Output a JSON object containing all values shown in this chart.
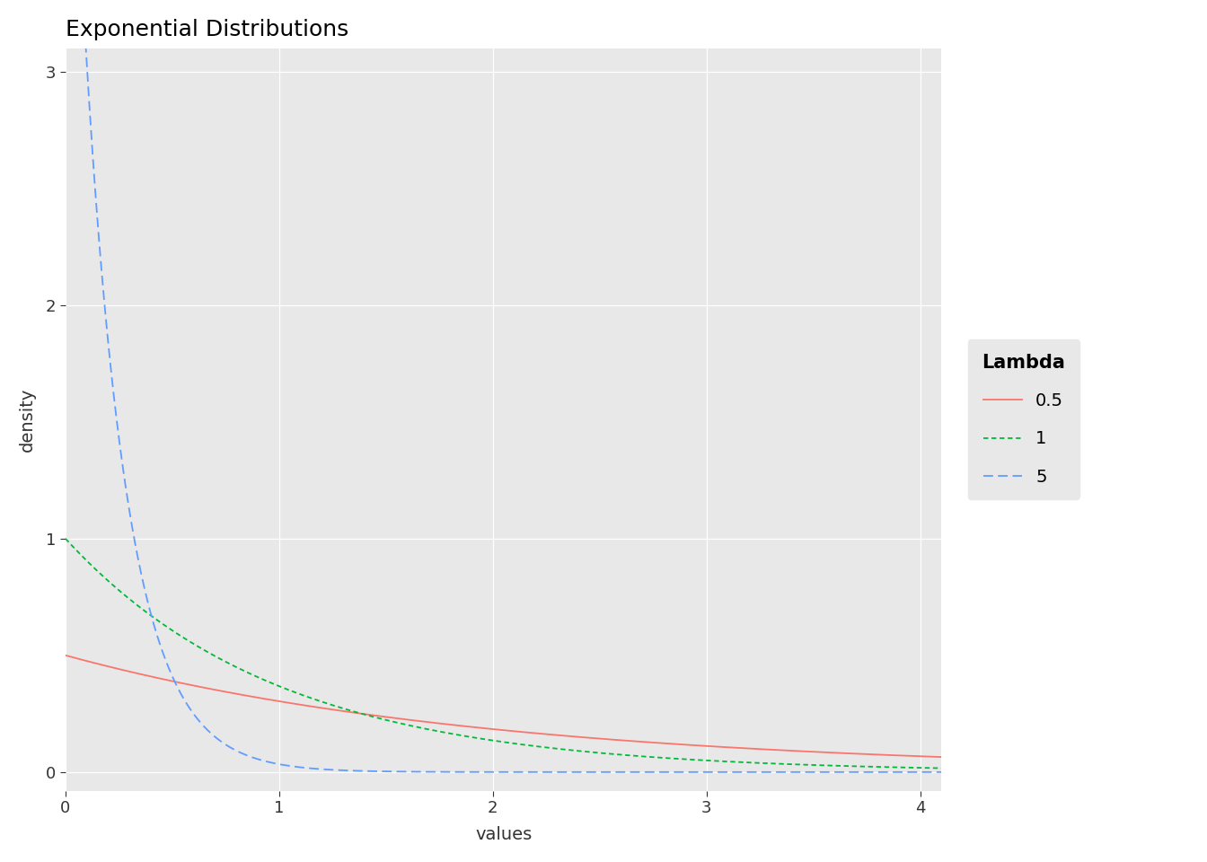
{
  "title": "Exponential Distributions",
  "xlabel": "values",
  "ylabel": "density",
  "legend_title": "Lambda",
  "lambdas": [
    0.5,
    1,
    5
  ],
  "lambda_labels": [
    "0.5",
    "1",
    "5"
  ],
  "colors": [
    "#F8766D",
    "#00BA38",
    "#619CFF"
  ],
  "linestyles": [
    "solid",
    "dotted",
    "dashed"
  ],
  "x_min": 0,
  "x_max": 4.1,
  "y_min": -0.08,
  "y_max": 3.1,
  "x_ticks": [
    0,
    1,
    2,
    3,
    4
  ],
  "y_ticks": [
    0,
    1,
    2,
    3
  ],
  "plot_bg_color": "#E8E8E8",
  "figure_bg_color": "#FFFFFF",
  "grid_color": "#FFFFFF",
  "title_fontsize": 18,
  "axis_label_fontsize": 14,
  "tick_fontsize": 13,
  "legend_title_fontsize": 15,
  "legend_fontsize": 14,
  "line_width": 1.3
}
